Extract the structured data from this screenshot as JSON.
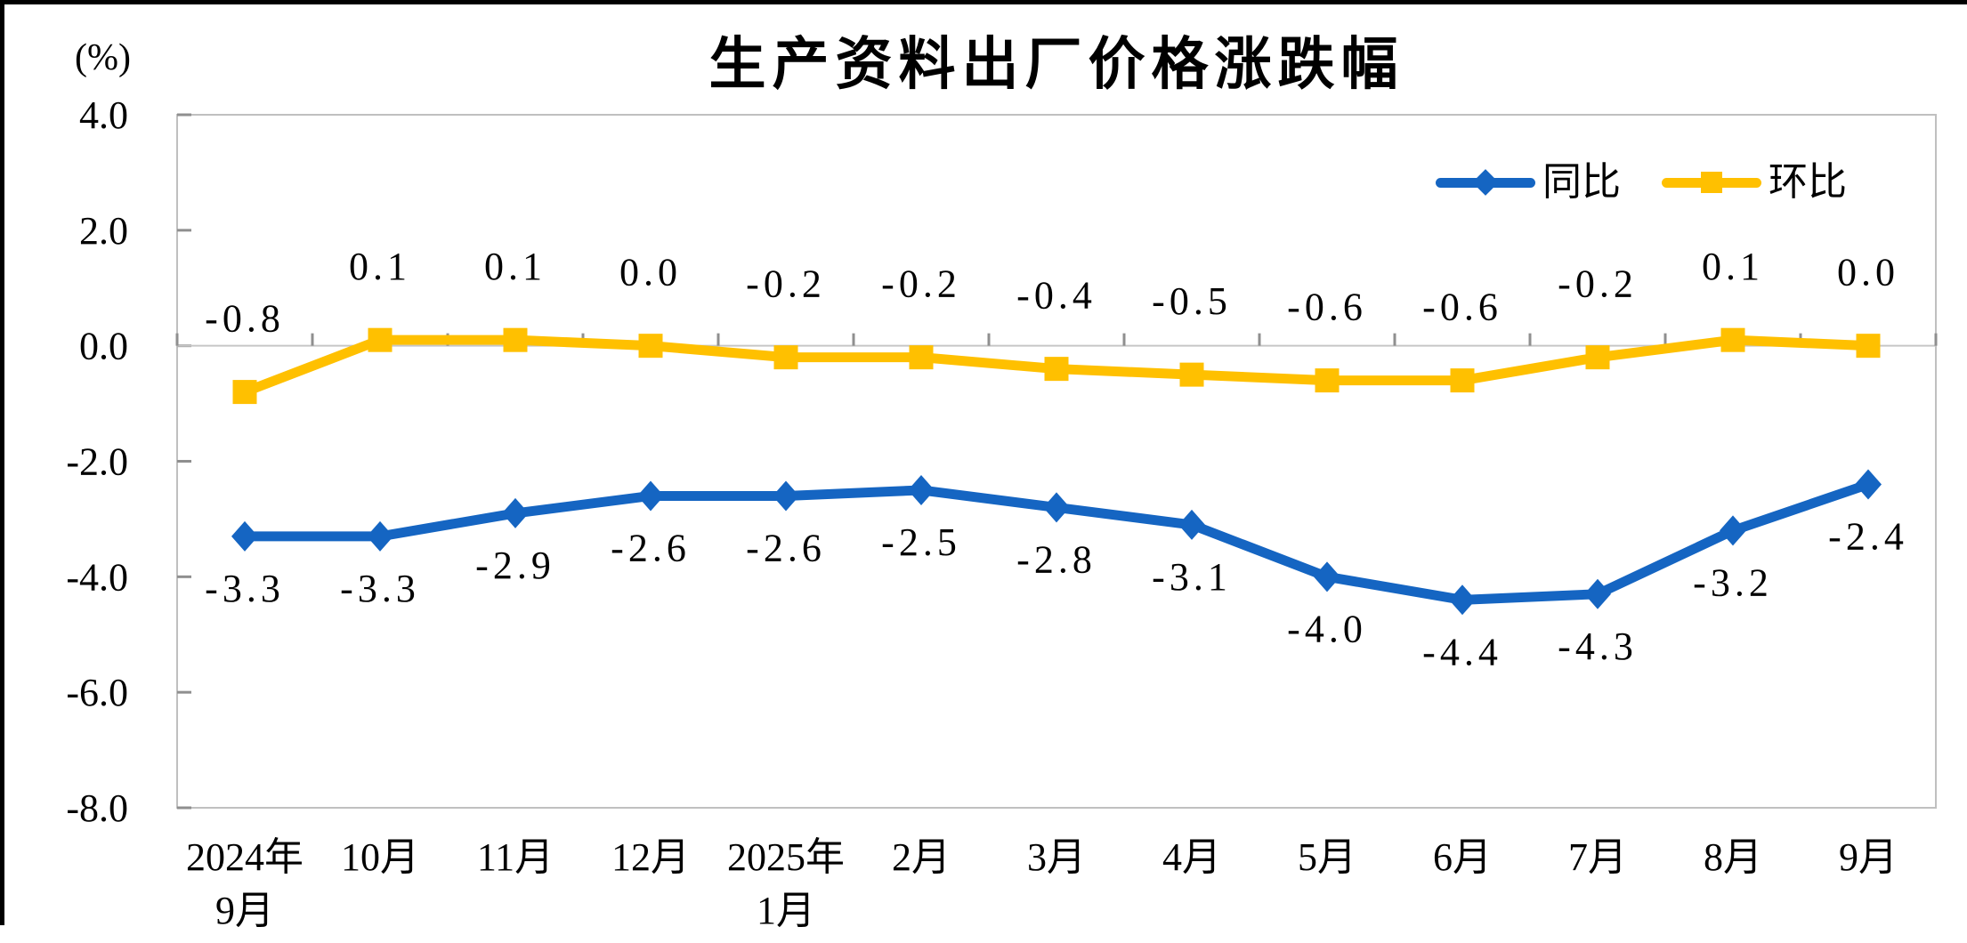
{
  "chart_data": {
    "type": "line",
    "title": "生产资料出厂价格涨跌幅",
    "unit_label": "(%)",
    "ylim": [
      -8.0,
      4.0
    ],
    "y_ticks": [
      "4.0",
      "2.0",
      "0.0",
      "-2.0",
      "-4.0",
      "-6.0",
      "-8.0"
    ],
    "grid": "zero-line-only",
    "legend_position": "top-right-inside",
    "categories": [
      {
        "line1": "2024年",
        "line2": "9月"
      },
      {
        "line1": "10月",
        "line2": ""
      },
      {
        "line1": "11月",
        "line2": ""
      },
      {
        "line1": "12月",
        "line2": ""
      },
      {
        "line1": "2025年",
        "line2": "1月"
      },
      {
        "line1": "2月",
        "line2": ""
      },
      {
        "line1": "3月",
        "line2": ""
      },
      {
        "line1": "4月",
        "line2": ""
      },
      {
        "line1": "5月",
        "line2": ""
      },
      {
        "line1": "6月",
        "line2": ""
      },
      {
        "line1": "7月",
        "line2": ""
      },
      {
        "line1": "8月",
        "line2": ""
      },
      {
        "line1": "9月",
        "line2": ""
      }
    ],
    "series": [
      {
        "name": "同比",
        "color": "#1565C2",
        "marker": "diamond",
        "label_side": "below",
        "values": [
          -3.3,
          -3.3,
          -2.9,
          -2.6,
          -2.6,
          -2.5,
          -2.8,
          -3.1,
          -4.0,
          -4.4,
          -4.3,
          -3.2,
          -2.4
        ],
        "labels": [
          "-3.3",
          "-3.3",
          "-2.9",
          "-2.6",
          "-2.6",
          "-2.5",
          "-2.8",
          "-3.1",
          "-4.0",
          "-4.4",
          "-4.3",
          "-3.2",
          "-2.4"
        ]
      },
      {
        "name": "环比",
        "color": "#FFC000",
        "marker": "square",
        "label_side": "above",
        "values": [
          -0.8,
          0.1,
          0.1,
          0.0,
          -0.2,
          -0.2,
          -0.4,
          -0.5,
          -0.6,
          -0.6,
          -0.2,
          0.1,
          0.0
        ],
        "labels": [
          "-0.8",
          "0.1",
          "0.1",
          "0.0",
          "-0.2",
          "-0.2",
          "-0.4",
          "-0.5",
          "-0.6",
          "-0.6",
          "-0.2",
          "0.1",
          "0.0"
        ]
      }
    ],
    "colors": {
      "axis_border": "#C0C0C0",
      "zero_line": "#C6C6C6",
      "tick": "#8F8F8F",
      "text": "#000000",
      "frame": "#000000"
    }
  },
  "legend": {
    "items": [
      {
        "label": "同比",
        "color": "#1565C2",
        "marker": "diamond"
      },
      {
        "label": "环比",
        "color": "#FFC000",
        "marker": "square"
      }
    ]
  }
}
